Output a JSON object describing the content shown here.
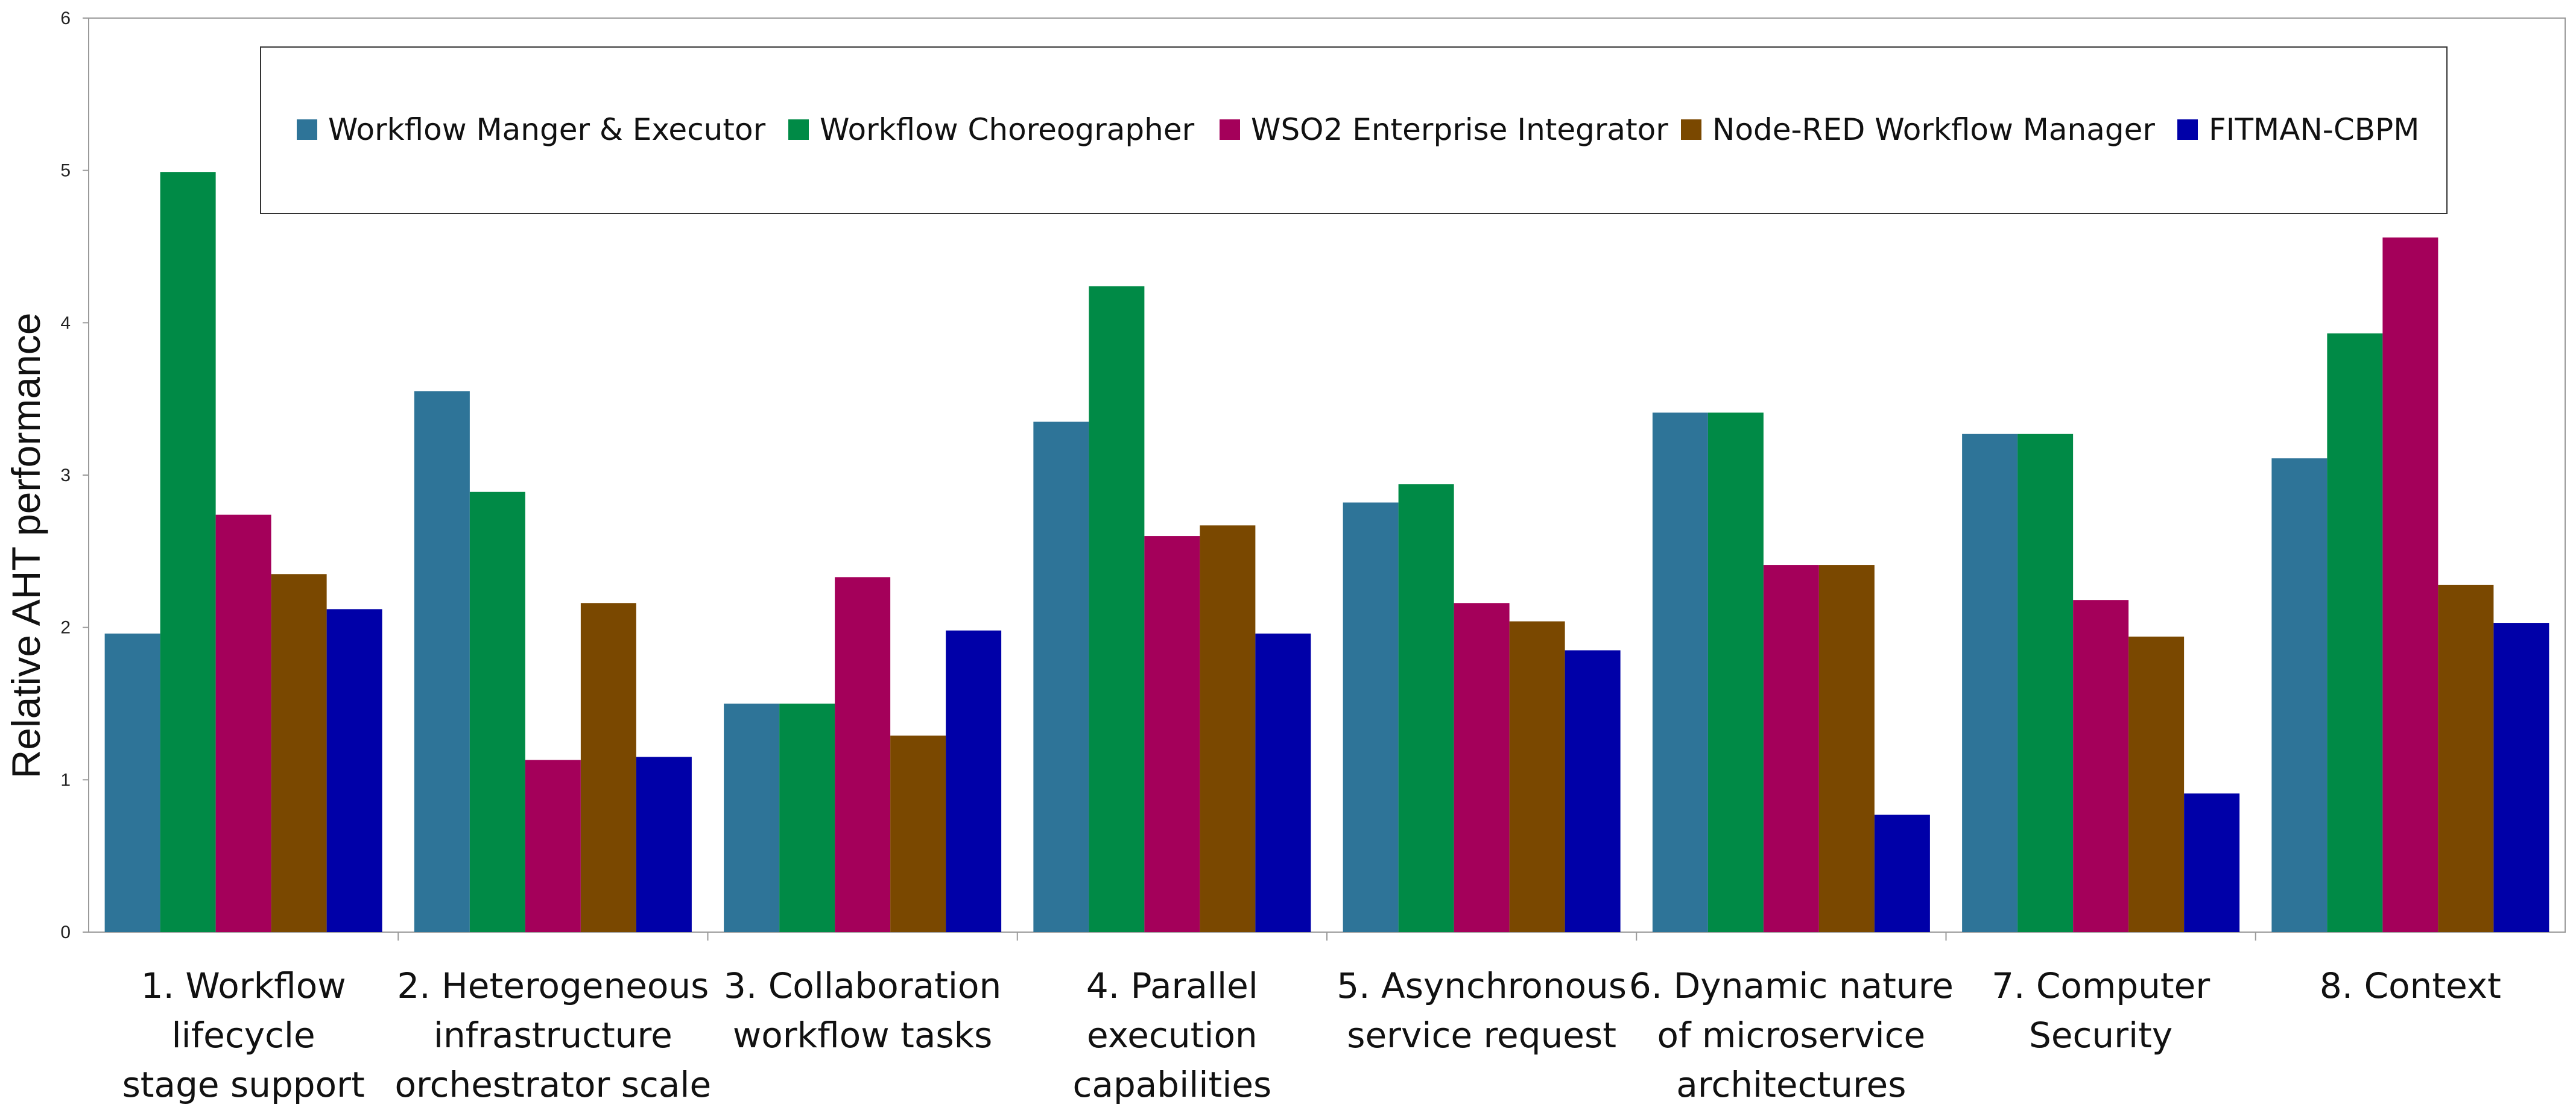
{
  "chart_data": {
    "type": "bar",
    "title": "",
    "xlabel": "",
    "ylabel": "Relative AHT performance",
    "ylim": [
      0,
      6
    ],
    "yticks": [
      "0",
      "1",
      "2",
      "3",
      "4",
      "5",
      "6"
    ],
    "grid": false,
    "legend_position": "top",
    "categories": [
      [
        "1. Workflow",
        "lifecycle",
        "stage support"
      ],
      [
        "2. Heterogeneous",
        "infrastructure",
        "orchestrator scale"
      ],
      [
        "3. Collaboration",
        "workflow tasks"
      ],
      [
        "4. Parallel",
        "execution",
        "capabilities"
      ],
      [
        "5. Asynchronous",
        "service request"
      ],
      [
        "6. Dynamic nature",
        "of microservice",
        "architectures"
      ],
      [
        "7. Computer",
        "Security"
      ],
      [
        "8. Context"
      ]
    ],
    "series": [
      {
        "name": "Workflow Manger & Executor",
        "color": "#2e7498",
        "values": [
          1.96,
          3.55,
          1.5,
          3.35,
          2.82,
          3.41,
          3.27,
          3.11
        ]
      },
      {
        "name": "Workflow Choreographer",
        "color": "#008a46",
        "values": [
          4.99,
          2.89,
          1.5,
          4.24,
          2.94,
          3.41,
          3.27,
          3.93
        ]
      },
      {
        "name": "WSO2 Enterprise Integrator",
        "color": "#a4005a",
        "values": [
          2.74,
          1.13,
          2.33,
          2.6,
          2.16,
          2.41,
          2.18,
          4.56
        ]
      },
      {
        "name": "Node-RED Workflow Manager",
        "color": "#7a4800",
        "values": [
          2.35,
          2.16,
          1.29,
          2.67,
          2.04,
          2.41,
          1.94,
          2.28
        ]
      },
      {
        "name": "FITMAN-CBPM",
        "color": "#0000a8",
        "values": [
          2.12,
          1.15,
          1.98,
          1.96,
          1.85,
          0.77,
          0.91,
          2.03
        ]
      }
    ]
  }
}
